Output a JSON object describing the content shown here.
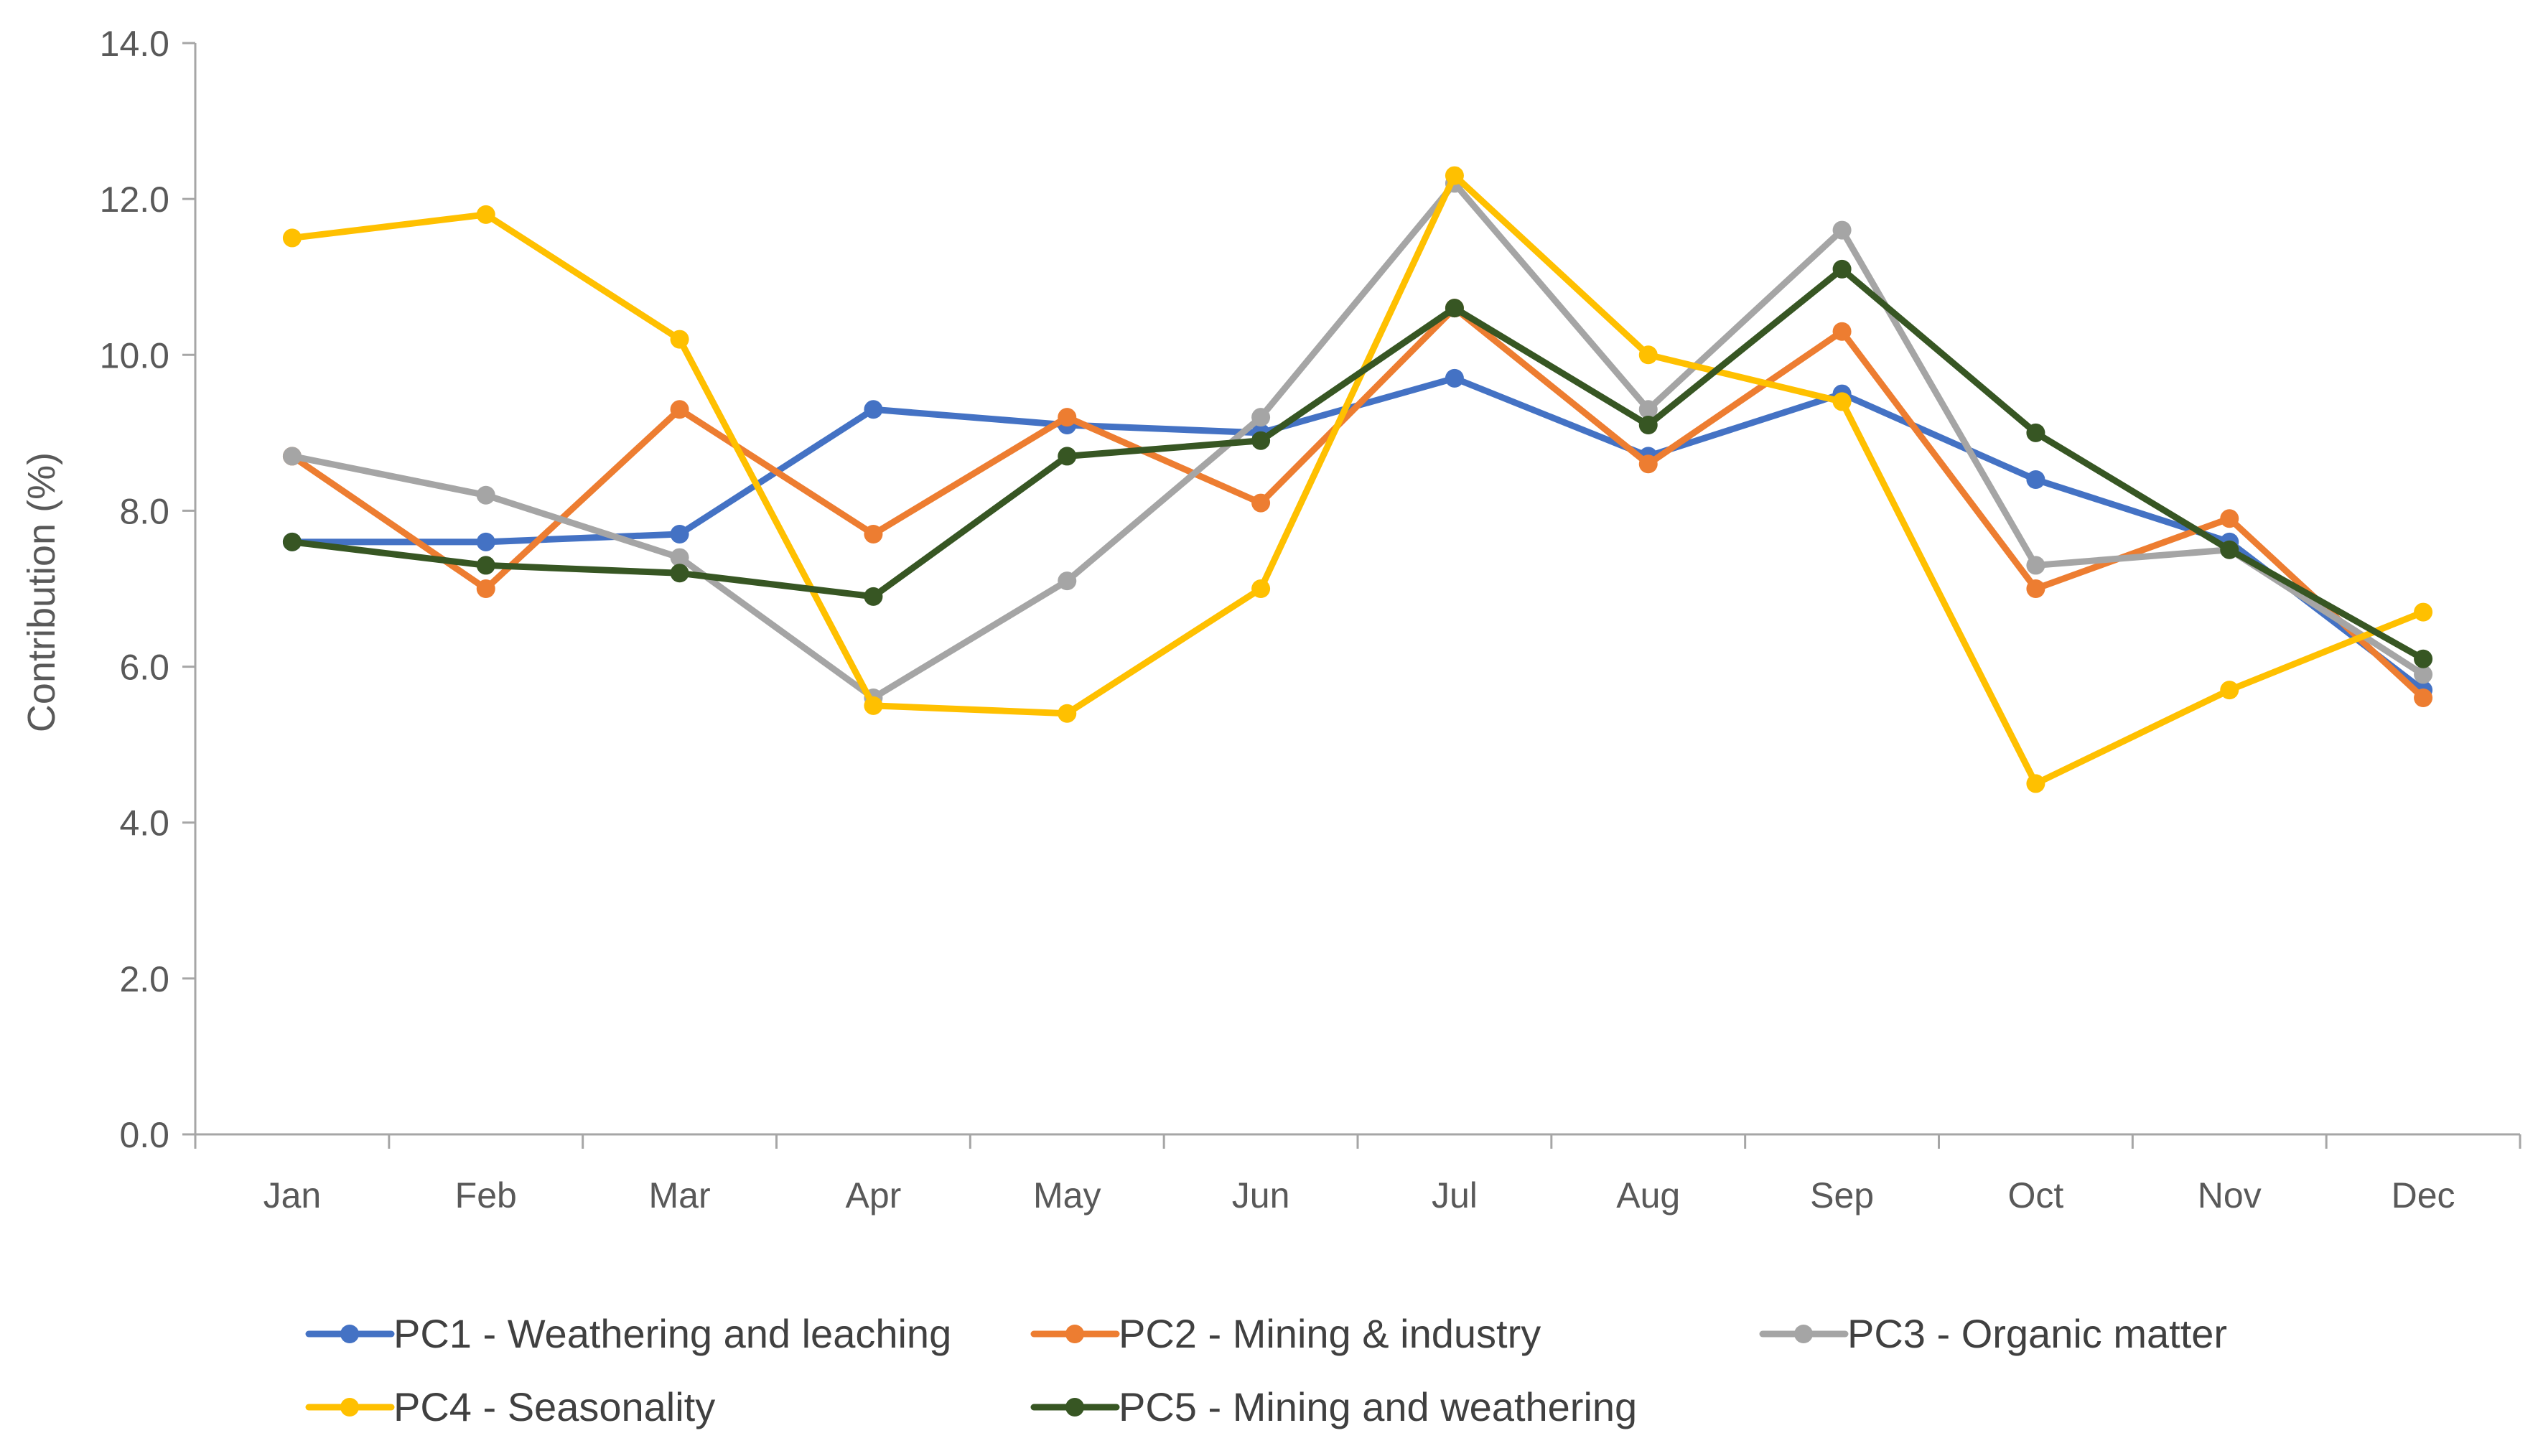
{
  "chart_data": {
    "type": "line",
    "title": "",
    "xlabel": "",
    "ylabel": "Contribution (%)",
    "ylim": [
      0,
      14
    ],
    "yticks": [
      "0.0",
      "2.0",
      "4.0",
      "6.0",
      "8.0",
      "10.0",
      "12.0",
      "14.0"
    ],
    "categories": [
      "Jan",
      "Feb",
      "Mar",
      "Apr",
      "May",
      "Jun",
      "Jul",
      "Aug",
      "Sep",
      "Oct",
      "Nov",
      "Dec"
    ],
    "grid": false,
    "legend_position": "bottom",
    "series": [
      {
        "name": "PC1 - Weathering and leaching",
        "color": "#4472C4",
        "values": [
          7.6,
          7.6,
          7.7,
          9.3,
          9.1,
          9.0,
          9.7,
          8.7,
          9.5,
          8.4,
          7.6,
          5.7
        ]
      },
      {
        "name": "PC2 - Mining & industry",
        "color": "#ED7D31",
        "values": [
          8.7,
          7.0,
          9.3,
          7.7,
          9.2,
          8.1,
          10.6,
          8.6,
          10.3,
          7.0,
          7.9,
          5.6
        ]
      },
      {
        "name": "PC3 - Organic matter",
        "color": "#A5A5A5",
        "values": [
          8.7,
          8.2,
          7.4,
          5.6,
          7.1,
          9.2,
          12.2,
          9.3,
          11.6,
          7.3,
          7.5,
          5.9
        ]
      },
      {
        "name": "PC4 - Seasonality",
        "color": "#FFC000",
        "values": [
          11.5,
          11.8,
          10.2,
          5.5,
          5.4,
          7.0,
          12.3,
          10.0,
          9.4,
          4.5,
          5.7,
          6.7
        ]
      },
      {
        "name": "PC5 - Mining and weathering",
        "color": "#375623",
        "values": [
          7.6,
          7.3,
          7.2,
          6.9,
          8.7,
          8.9,
          10.6,
          9.1,
          11.1,
          9.0,
          7.5,
          6.1
        ]
      }
    ]
  }
}
